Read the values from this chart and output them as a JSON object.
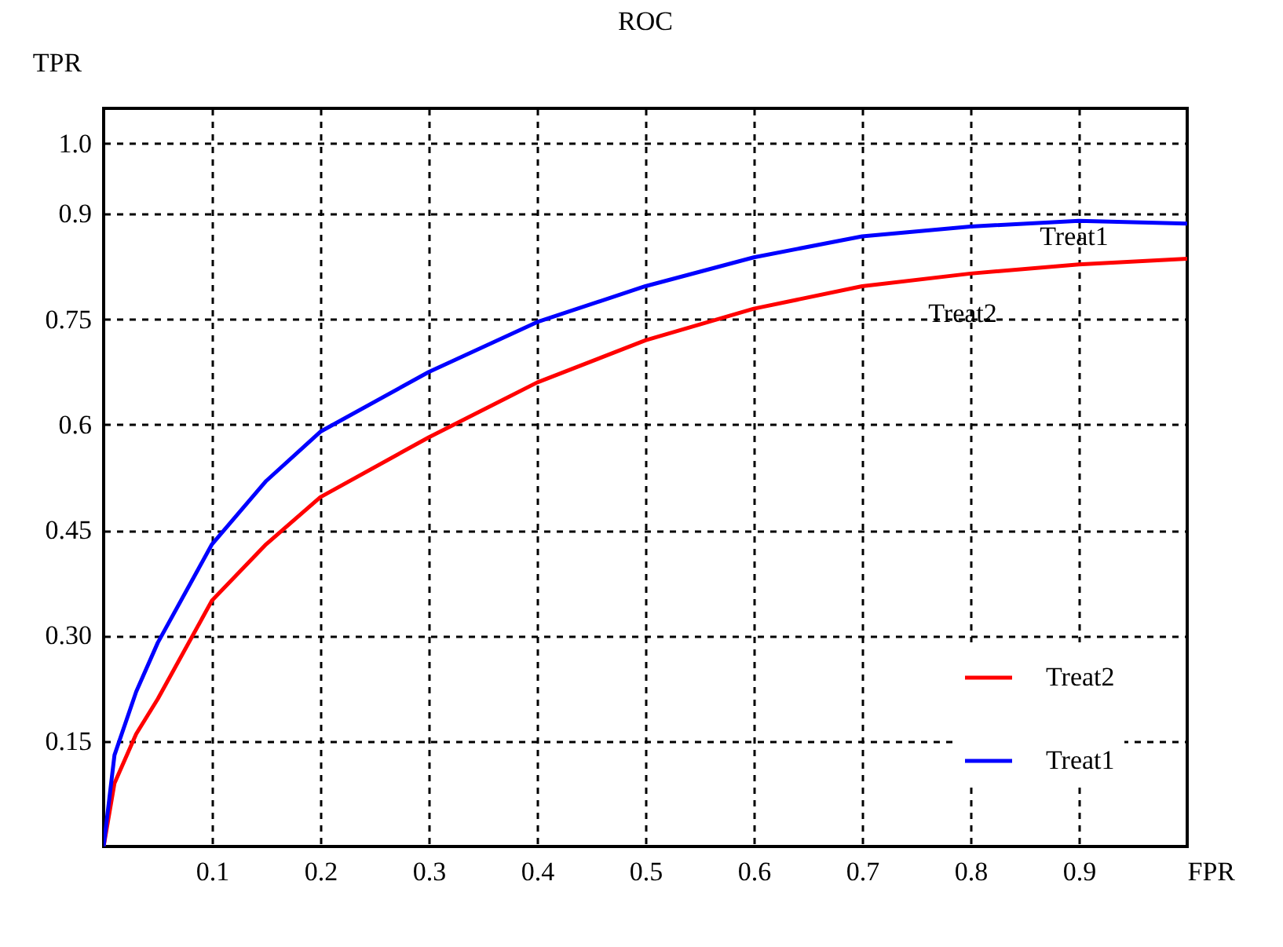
{
  "chart_data": {
    "type": "line",
    "title": "ROC",
    "xlabel": "FPR",
    "ylabel": "TPR",
    "x": [
      0,
      0.01,
      0.03,
      0.05,
      0.1,
      0.15,
      0.2,
      0.3,
      0.4,
      0.5,
      0.6,
      0.7,
      0.8,
      0.9,
      1.0
    ],
    "series": [
      {
        "name": "Treat2",
        "color": "#ff0000",
        "values": [
          0,
          0.09,
          0.16,
          0.21,
          0.35,
          0.43,
          0.497,
          0.582,
          0.66,
          0.72,
          0.765,
          0.797,
          0.815,
          0.828,
          0.836
        ]
      },
      {
        "name": "Treat1",
        "color": "#0000ff",
        "values": [
          0,
          0.13,
          0.22,
          0.29,
          0.43,
          0.52,
          0.59,
          0.675,
          0.746,
          0.797,
          0.838,
          0.868,
          0.882,
          0.89,
          0.886
        ]
      }
    ],
    "xlim": [
      0,
      1
    ],
    "ylim": [
      0,
      1.05
    ],
    "xticks": [
      0.1,
      0.2,
      0.3,
      0.4,
      0.5,
      0.6,
      0.7,
      0.8,
      0.9
    ],
    "yticks": [
      0.15,
      {
        "value": 0.3,
        "label": "0.30"
      },
      0.45,
      0.6,
      0.75,
      0.9,
      {
        "value": 1,
        "label": "1.0"
      }
    ],
    "annotations": [
      "Treat1",
      "Treat2"
    ],
    "grid": true,
    "legend": "bottom right",
    "marker": "none",
    "line_style": "solid"
  }
}
